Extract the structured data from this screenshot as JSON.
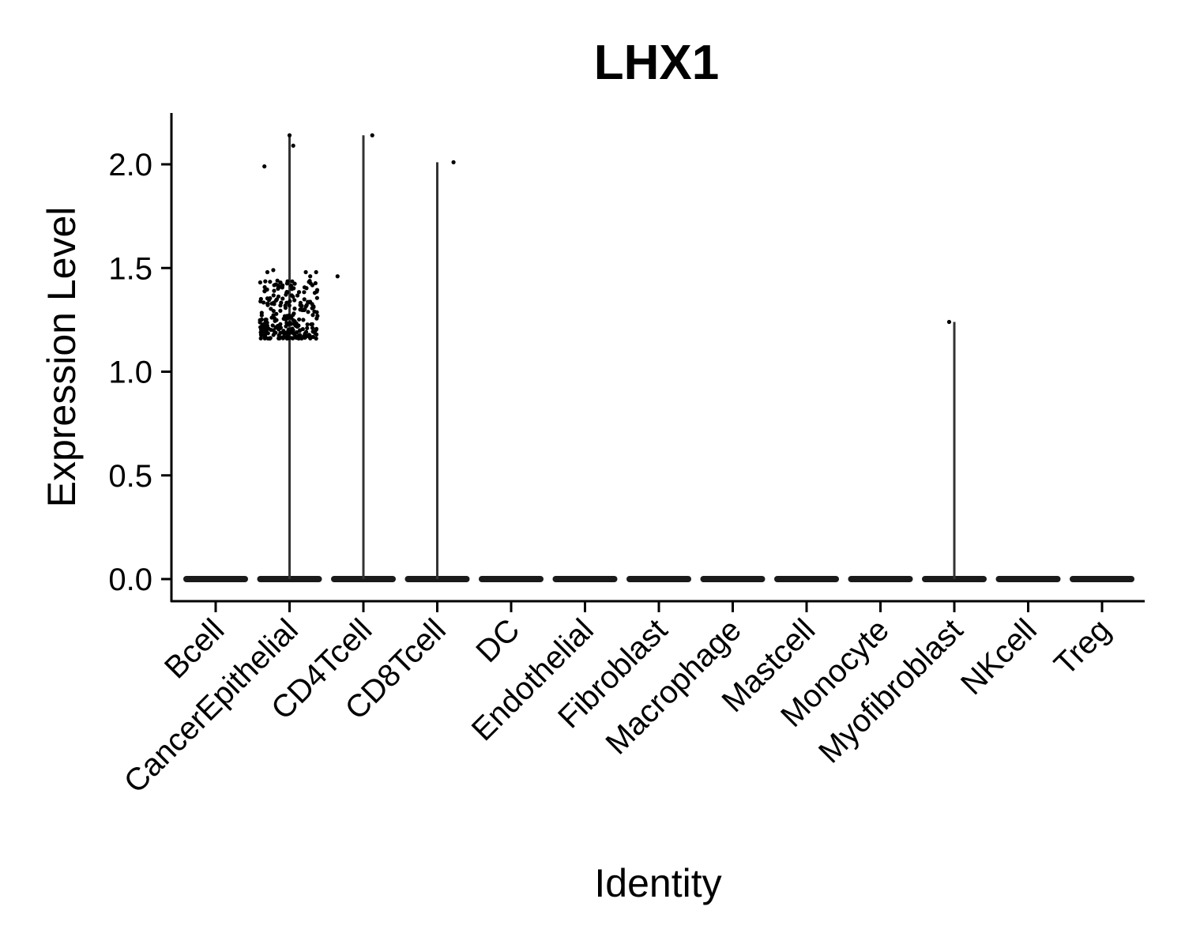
{
  "chart_data": {
    "type": "violin",
    "title": "LHX1",
    "xlabel": "Identity",
    "ylabel": "Expression Level",
    "ylim": [
      -0.1,
      2.25
    ],
    "yticks": [
      "0.0",
      "0.5",
      "1.0",
      "1.5",
      "2.0"
    ],
    "ytick_values": [
      0,
      0.5,
      1.0,
      1.5,
      2.0
    ],
    "grid": false,
    "categories": [
      "Bcell",
      "CancerEpithelial",
      "CD4Tcell",
      "CD8Tcell",
      "DC",
      "Endothelial",
      "Fibroblast",
      "Macrophage",
      "Mastcell",
      "Monocyte",
      "Myofibroblast",
      "NKcell",
      "Treg"
    ],
    "max_values": [
      0,
      2.14,
      2.14,
      2.01,
      0,
      0,
      0,
      0,
      0,
      0,
      1.24,
      0,
      0
    ],
    "points": [
      {
        "category": "CancerEpithelial",
        "jitter": -0.34,
        "y": 1.99
      },
      {
        "category": "CancerEpithelial",
        "jitter": 0.0,
        "y": 2.14
      },
      {
        "category": "CancerEpithelial",
        "jitter": 0.05,
        "y": 2.09
      },
      {
        "category": "CancerEpithelial",
        "jitter": -0.3,
        "y": 1.48
      },
      {
        "category": "CancerEpithelial",
        "jitter": -0.22,
        "y": 1.49
      },
      {
        "category": "CancerEpithelial",
        "jitter": 0.22,
        "y": 1.48
      },
      {
        "category": "CancerEpithelial",
        "jitter": 0.28,
        "y": 1.46
      },
      {
        "category": "CancerEpithelial",
        "jitter": 0.36,
        "y": 1.48
      },
      {
        "category": "CancerEpithelial",
        "jitter": 0.65,
        "y": 1.46
      },
      {
        "category": "CD4Tcell",
        "jitter": 0.12,
        "y": 2.14
      },
      {
        "category": "CD8Tcell",
        "jitter": 0.22,
        "y": 2.01
      },
      {
        "category": "Myofibroblast",
        "jitter": -0.07,
        "y": 1.24
      }
    ],
    "dense_cluster": {
      "category": "CancerEpithelial",
      "y_range": [
        1.16,
        1.44
      ],
      "jitter_range": [
        -0.4,
        0.4
      ]
    }
  }
}
